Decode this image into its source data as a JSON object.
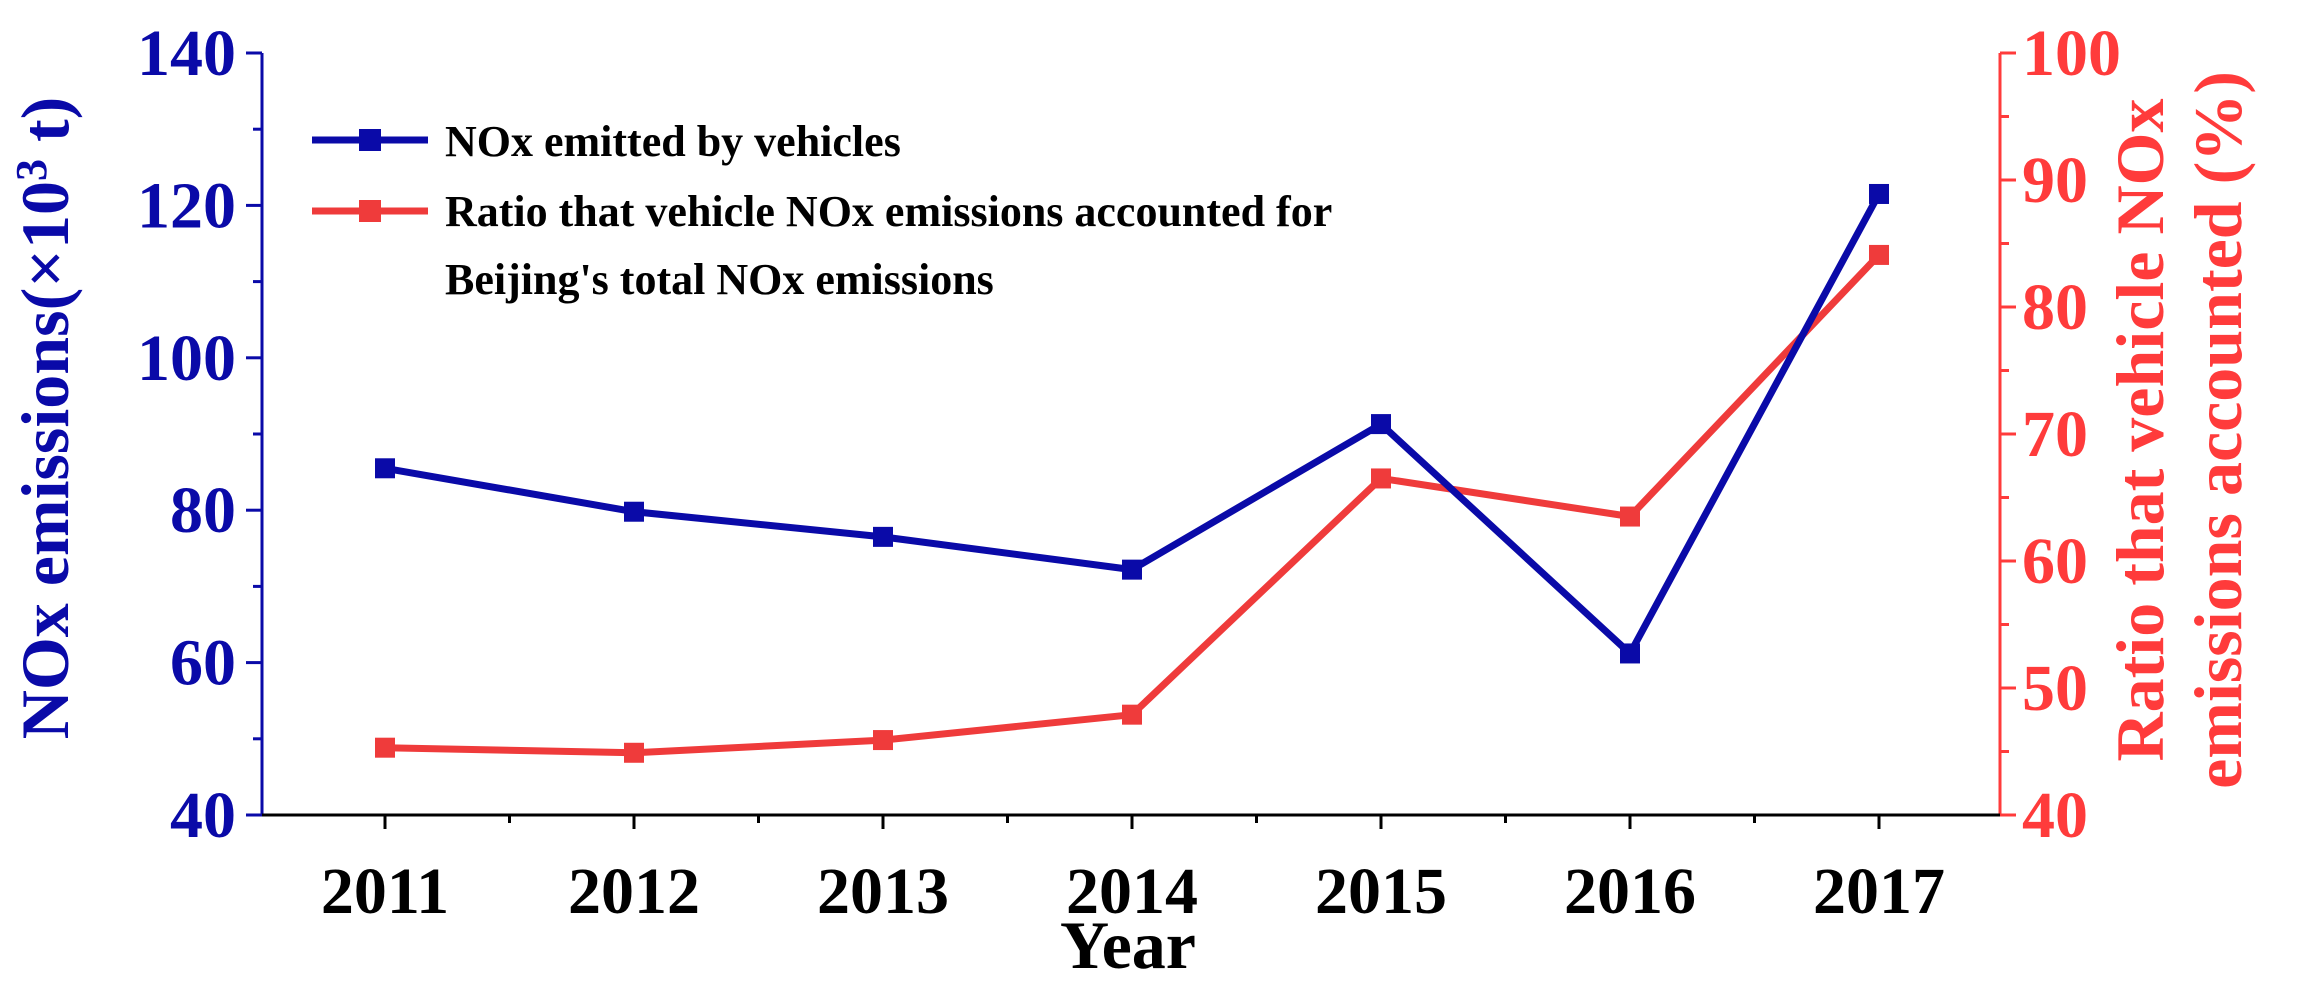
{
  "chart_data": {
    "type": "line",
    "title": "",
    "xlabel": "Year",
    "categories": [
      "2011",
      "2012",
      "2013",
      "2014",
      "2015",
      "2016",
      "2017"
    ],
    "y_left": {
      "label": "NOx emissions(×10³ t)",
      "label_base": "NOx emissions(×10",
      "label_sup": "3",
      "label_tail": " t)",
      "range": [
        40,
        140
      ],
      "ticks": [
        40,
        60,
        80,
        100,
        120,
        140
      ],
      "color": "#0a0aa8"
    },
    "y_right": {
      "label": "Ratio that vehicle NOx emissions accounted (%)",
      "label_line1": "Ratio that vehicle NOx",
      "label_line2": "emissions accounted (%)",
      "range": [
        40,
        100
      ],
      "ticks": [
        40,
        50,
        60,
        70,
        80,
        90,
        100
      ],
      "color": "#ff3b3b"
    },
    "series": [
      {
        "name": "NOx emitted by vehicles",
        "axis": "left",
        "color": "#0a0aa8",
        "values": [
          85.5,
          79.8,
          76.5,
          72.2,
          91.3,
          61.2,
          121.5
        ]
      },
      {
        "name": "Ratio that vehicle NOx emissions accounted for Beijing's total NOx emissions",
        "name_line1": "Ratio that vehicle NOx emissions accounted for",
        "name_line2": "Beijing's total NOx emissions",
        "axis": "right",
        "color": "#ef3b3b",
        "values": [
          45.3,
          44.9,
          45.9,
          47.9,
          66.5,
          63.5,
          84.1
        ]
      }
    ],
    "legend_position": "top-left",
    "grid": false
  }
}
